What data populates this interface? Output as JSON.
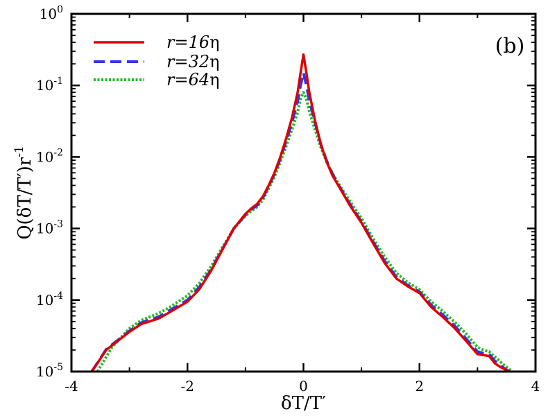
{
  "chart_data": {
    "type": "line",
    "panel_label": "(b)",
    "xlabel": "δT/T′",
    "ylabel": "Q(δT/T′)r",
    "ylabel_exponent": "-1",
    "xlim": [
      -4,
      4
    ],
    "ylim": [
      1e-05,
      1
    ],
    "yscale": "log",
    "xticks": [
      {
        "value": -4,
        "label": "-4"
      },
      {
        "value": -2,
        "label": "-2"
      },
      {
        "value": 0,
        "label": "0"
      },
      {
        "value": 2,
        "label": "2"
      },
      {
        "value": 4,
        "label": "4"
      }
    ],
    "yticks": [
      {
        "value": 1e-05,
        "base": "10",
        "exp": "-5"
      },
      {
        "value": 0.0001,
        "base": "10",
        "exp": "-4"
      },
      {
        "value": 0.001,
        "base": "10",
        "exp": "-3"
      },
      {
        "value": 0.01,
        "base": "10",
        "exp": "-2"
      },
      {
        "value": 0.1,
        "base": "10",
        "exp": "-1"
      },
      {
        "value": 1,
        "base": "10",
        "exp": "0"
      }
    ],
    "series": [
      {
        "name": "r=16η",
        "label_main": "r=16",
        "label_greek": "η",
        "color": "#dd0000",
        "style": "solid",
        "x": [
          -3.65,
          -3.4,
          -3.0,
          -2.8,
          -2.5,
          -2.3,
          -2.0,
          -1.8,
          -1.6,
          -1.4,
          -1.2,
          -1.0,
          -0.9,
          -0.8,
          -0.7,
          -0.6,
          -0.5,
          -0.4,
          -0.3,
          -0.2,
          -0.1,
          -0.05,
          0.0,
          0.05,
          0.1,
          0.2,
          0.3,
          0.4,
          0.5,
          0.6,
          0.8,
          1.0,
          1.2,
          1.4,
          1.6,
          1.8,
          2.0,
          2.2,
          2.4,
          2.6,
          2.8,
          3.0,
          3.1,
          3.2,
          3.3,
          3.4,
          3.55
        ],
        "y": [
          1e-05,
          2e-05,
          3.6e-05,
          4.6e-05,
          5.5e-05,
          6.8e-05,
          9.5e-05,
          0.00014,
          0.00025,
          0.0005,
          0.001,
          0.0016,
          0.0019,
          0.0022,
          0.0028,
          0.004,
          0.006,
          0.01,
          0.018,
          0.035,
          0.08,
          0.15,
          0.27,
          0.15,
          0.08,
          0.032,
          0.015,
          0.0085,
          0.0055,
          0.004,
          0.0021,
          0.0012,
          0.00062,
          0.00033,
          0.0002,
          0.000155,
          0.000125,
          8e-05,
          5.8e-05,
          4.1e-05,
          2.7e-05,
          1.75e-05,
          1.7e-05,
          1.65e-05,
          1.3e-05,
          1.15e-05,
          1e-05
        ]
      },
      {
        "name": "r=32η",
        "label_main": "r=32",
        "label_greek": "η",
        "color": "#3333ee",
        "style": "dashed",
        "x": [
          -3.65,
          -3.4,
          -3.0,
          -2.8,
          -2.5,
          -2.3,
          -2.0,
          -1.8,
          -1.6,
          -1.4,
          -1.2,
          -1.0,
          -0.9,
          -0.8,
          -0.7,
          -0.6,
          -0.5,
          -0.4,
          -0.3,
          -0.2,
          -0.1,
          -0.05,
          0.0,
          0.05,
          0.1,
          0.2,
          0.3,
          0.4,
          0.5,
          0.6,
          0.8,
          1.0,
          1.2,
          1.4,
          1.6,
          1.8,
          2.0,
          2.2,
          2.4,
          2.6,
          2.8,
          3.0,
          3.1,
          3.2,
          3.3,
          3.4,
          3.55
        ],
        "y": [
          1e-05,
          2.05e-05,
          3.7e-05,
          4.8e-05,
          5.8e-05,
          7.2e-05,
          0.0001,
          0.00015,
          0.00026,
          0.00051,
          0.001,
          0.00155,
          0.00185,
          0.0021,
          0.0027,
          0.0039,
          0.0058,
          0.0095,
          0.0165,
          0.03,
          0.06,
          0.1,
          0.15,
          0.1,
          0.062,
          0.03,
          0.015,
          0.0088,
          0.0058,
          0.0041,
          0.0022,
          0.00125,
          0.00065,
          0.00035,
          0.00021,
          0.00016,
          0.00013,
          8.5e-05,
          6.2e-05,
          4.4e-05,
          2.9e-05,
          1.9e-05,
          1.8e-05,
          1.75e-05,
          1.4e-05,
          1.2e-05,
          1e-05
        ]
      },
      {
        "name": "r=64η",
        "label_main": "r=64",
        "label_greek": "η",
        "color": "#22bb22",
        "style": "dotted",
        "x": [
          -3.55,
          -3.3,
          -3.0,
          -2.8,
          -2.5,
          -2.3,
          -2.0,
          -1.8,
          -1.6,
          -1.4,
          -1.2,
          -1.0,
          -0.9,
          -0.8,
          -0.7,
          -0.6,
          -0.5,
          -0.4,
          -0.3,
          -0.2,
          -0.1,
          -0.05,
          0.0,
          0.05,
          0.1,
          0.2,
          0.3,
          0.4,
          0.5,
          0.6,
          0.8,
          1.0,
          1.2,
          1.4,
          1.6,
          1.8,
          2.0,
          2.2,
          2.4,
          2.6,
          2.8,
          3.0,
          3.1,
          3.2,
          3.3,
          3.45,
          3.6
        ],
        "y": [
          1e-05,
          2.2e-05,
          4e-05,
          5.2e-05,
          6.5e-05,
          8e-05,
          0.000115,
          0.00017,
          0.00029,
          0.00054,
          0.001,
          0.0015,
          0.00175,
          0.002,
          0.0025,
          0.0036,
          0.0053,
          0.0085,
          0.014,
          0.024,
          0.042,
          0.065,
          0.08,
          0.065,
          0.043,
          0.024,
          0.0135,
          0.0085,
          0.0059,
          0.0043,
          0.0024,
          0.0014,
          0.00072,
          0.0004,
          0.00024,
          0.000175,
          0.00014,
          9.5e-05,
          7e-05,
          5e-05,
          3.4e-05,
          2.2e-05,
          2e-05,
          1.9e-05,
          1.6e-05,
          1.25e-05,
          1e-05
        ]
      }
    ]
  }
}
